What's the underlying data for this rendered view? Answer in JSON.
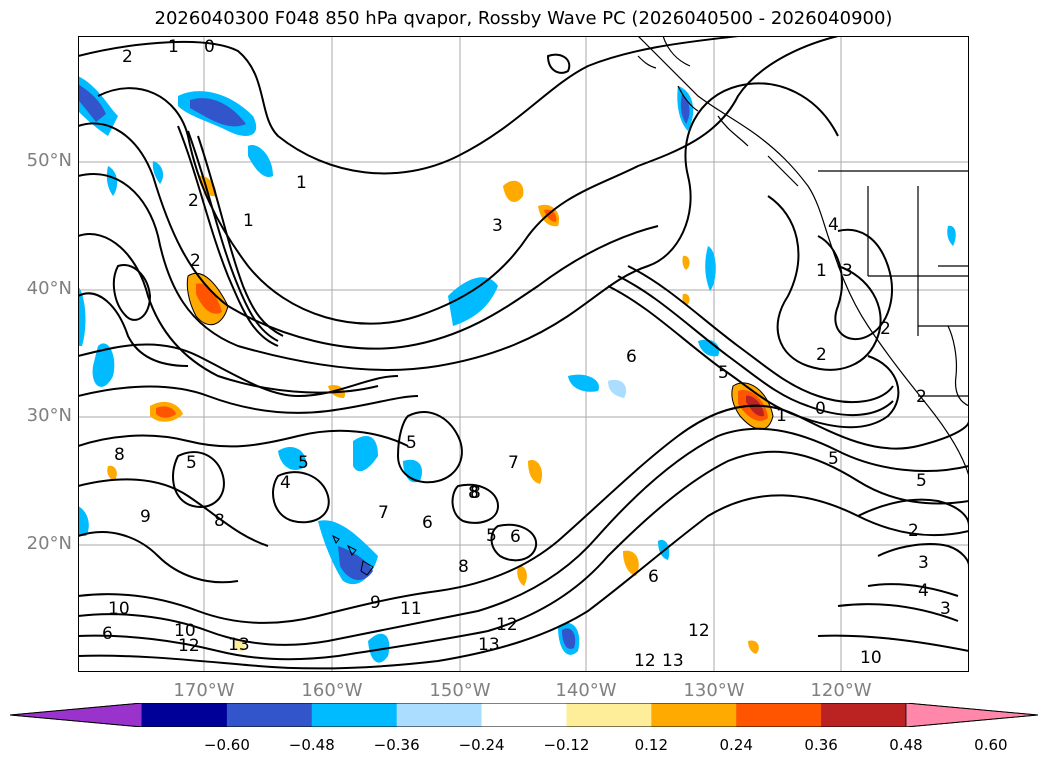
{
  "title": "2026040300 F048 850 hPa qvapor, Rossby Wave PC (2026040500 - 2026040900)",
  "lat_labels": [
    "50°N",
    "40°N",
    "30°N",
    "20°N"
  ],
  "lon_labels": [
    "170°W",
    "160°W",
    "150°W",
    "140°W",
    "130°W",
    "120°W"
  ],
  "colorbar": {
    "ticks": [
      "−0.60",
      "−0.48",
      "−0.36",
      "−0.24",
      "−0.12",
      "0.12",
      "0.24",
      "0.36",
      "0.48",
      "0.60"
    ],
    "colors": [
      "#9933cc",
      "#000099",
      "#3355cc",
      "#00bbff",
      "#aaddff",
      "#ffffff",
      "#ffee99",
      "#ffaa00",
      "#ff5500",
      "#bb2222",
      "#ff88aa"
    ]
  },
  "contour_labels": [
    {
      "text": "1"
    },
    {
      "text": "0"
    },
    {
      "text": "2"
    },
    {
      "text": "2"
    },
    {
      "text": "1"
    },
    {
      "text": "2"
    },
    {
      "text": "1"
    },
    {
      "text": "3"
    },
    {
      "text": "4"
    },
    {
      "text": "3"
    },
    {
      "text": "2"
    },
    {
      "text": "6"
    },
    {
      "text": "5"
    },
    {
      "text": "1"
    },
    {
      "text": "0"
    },
    {
      "text": "5"
    },
    {
      "text": "5"
    },
    {
      "text": "5"
    },
    {
      "text": "4"
    },
    {
      "text": "7"
    },
    {
      "text": "8"
    },
    {
      "text": "9"
    },
    {
      "text": "6"
    },
    {
      "text": "5"
    },
    {
      "text": "6"
    },
    {
      "text": "7"
    },
    {
      "text": "8"
    },
    {
      "text": "9"
    },
    {
      "text": "11"
    },
    {
      "text": "12"
    },
    {
      "text": "13"
    },
    {
      "text": "12"
    },
    {
      "text": "12"
    },
    {
      "text": "13"
    },
    {
      "text": "10"
    },
    {
      "text": "12"
    },
    {
      "text": "13"
    },
    {
      "text": "6"
    },
    {
      "text": "10"
    },
    {
      "text": "2"
    },
    {
      "text": "3"
    },
    {
      "text": "4"
    },
    {
      "text": "3"
    },
    {
      "text": "10"
    },
    {
      "text": "1"
    },
    {
      "text": "2"
    },
    {
      "text": "2"
    },
    {
      "text": "5"
    },
    {
      "text": "8"
    },
    {
      "text": "8"
    },
    {
      "text": "6"
    },
    {
      "text": "8"
    },
    {
      "text": "5"
    }
  ]
}
